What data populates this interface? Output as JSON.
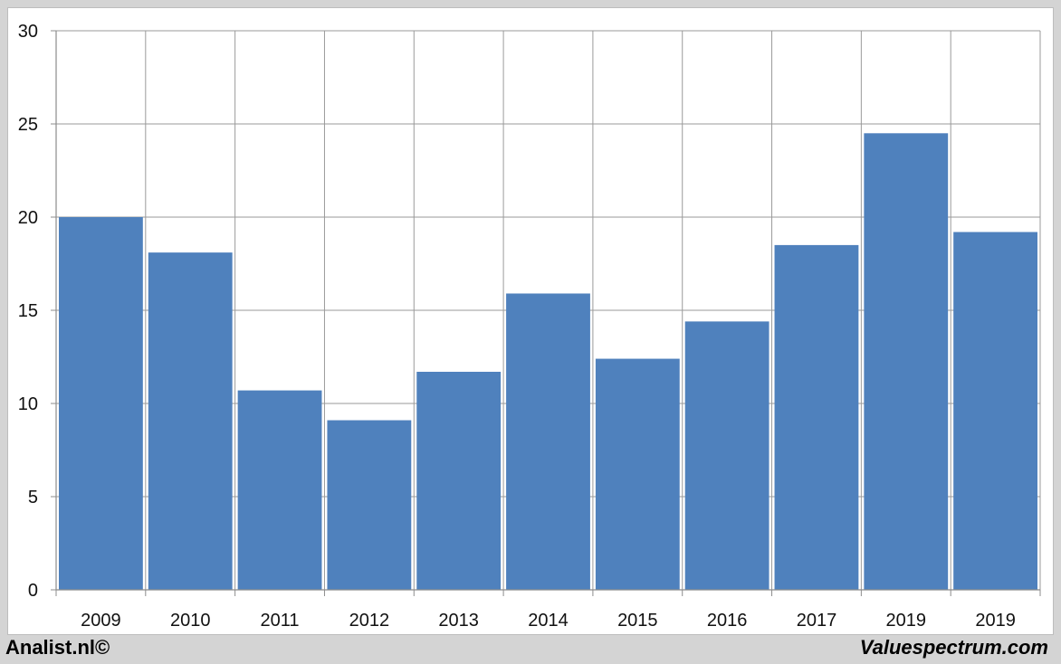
{
  "chart_data": {
    "type": "bar",
    "categories": [
      "2009",
      "2010",
      "2011",
      "2012",
      "2013",
      "2014",
      "2015",
      "2016",
      "2017",
      "2019",
      "2019"
    ],
    "values": [
      20.0,
      18.1,
      10.7,
      9.1,
      11.7,
      15.9,
      12.4,
      14.4,
      18.5,
      24.5,
      19.2
    ],
    "ylim": [
      0,
      30
    ],
    "yticks": [
      0,
      5,
      10,
      15,
      20,
      25,
      30
    ],
    "grid": true,
    "legend": "none",
    "title": "",
    "xlabel": "",
    "ylabel": "",
    "colors": {
      "bar": "#4f81bd",
      "grid": "#9a9a9a",
      "axis": "#8c8c8c"
    }
  },
  "footer": {
    "left": "Analist.nl©",
    "right": "Valuespectrum.com"
  }
}
